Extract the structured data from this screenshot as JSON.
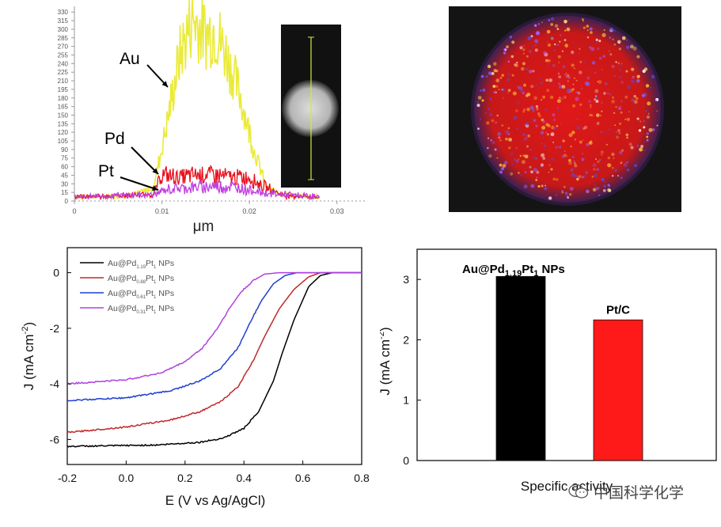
{
  "colors": {
    "au": "#eaea3a",
    "pd": "#e8101c",
    "pt": "#c040e0",
    "black": "#000000",
    "red": "#c0282a",
    "blue": "#1f3fd0",
    "magenta": "#b040e0",
    "bar_red": "#ff1a1a"
  },
  "charts": [
    {
      "chart_data": {
        "type": "line",
        "title": "",
        "xlabel": "μm",
        "ylabel": "",
        "xlim": [
          0,
          0.034
        ],
        "ylim": [
          0,
          340
        ],
        "x_ticks": [
          "0",
          "0.01",
          "0.02",
          "0.03"
        ],
        "y_ticks": [
          "0",
          "15",
          "30",
          "45",
          "60",
          "75",
          "90",
          "105",
          "120",
          "135",
          "150",
          "165",
          "180",
          "195",
          "210",
          "225",
          "240",
          "255",
          "270",
          "285",
          "300",
          "315",
          "330"
        ],
        "grid": false,
        "series": [
          {
            "name": "Au",
            "x": [
              0,
              0.006,
              0.009,
              0.0105,
              0.012,
              0.0135,
              0.015,
              0.016,
              0.0175,
              0.019,
              0.0205,
              0.022,
              0.025,
              0.028
            ],
            "y": [
              6,
              8,
              20,
              130,
              250,
              320,
              290,
              300,
              250,
              180,
              90,
              20,
              8,
              6
            ]
          },
          {
            "name": "Pd",
            "x": [
              0,
              0.009,
              0.01,
              0.012,
              0.014,
              0.016,
              0.018,
              0.02,
              0.021,
              0.024,
              0.028
            ],
            "y": [
              6,
              10,
              45,
              40,
              45,
              45,
              40,
              40,
              30,
              8,
              6
            ]
          },
          {
            "name": "Pt",
            "x": [
              0,
              0.009,
              0.011,
              0.013,
              0.016,
              0.019,
              0.022,
              0.028
            ],
            "y": [
              6,
              10,
              20,
              22,
              25,
              22,
              12,
              6
            ]
          }
        ]
      },
      "labels": {
        "au": "Au",
        "pd": "Pd",
        "pt": "Pt"
      }
    },
    {
      "chart_data": {
        "type": "line",
        "title": "",
        "xlabel": "E (V vs Ag/AgCl)",
        "ylabel": "J (mA cm",
        "ylabel_sup": "-2",
        "ylabel_end": ")",
        "xlim": [
          -0.2,
          0.8
        ],
        "ylim": [
          -6.9,
          0.9
        ],
        "x_ticks": [
          "-0.2",
          "0.0",
          "0.2",
          "0.4",
          "0.6",
          "0.8"
        ],
        "y_ticks": [
          "0",
          "-2",
          "-4",
          "-6"
        ],
        "grid": false,
        "legend": "top-left",
        "series": [
          {
            "name_main": "Au@Pd",
            "name_sub": "1.19",
            "name_pt": "Pt",
            "name_pt_sub": "1",
            "name_end": " NPs",
            "x": [
              -0.2,
              0.1,
              0.25,
              0.33,
              0.4,
              0.45,
              0.5,
              0.53,
              0.57,
              0.62,
              0.66,
              0.7,
              0.8
            ],
            "y": [
              -6.25,
              -6.2,
              -6.1,
              -5.95,
              -5.6,
              -5.0,
              -3.9,
              -2.9,
              -1.7,
              -0.5,
              -0.1,
              0.0,
              0.0
            ]
          },
          {
            "name_main": "Au@Pd",
            "name_sub": "0.88",
            "name_pt": "Pt",
            "name_pt_sub": "1",
            "name_end": " NPs",
            "x": [
              -0.2,
              0.0,
              0.15,
              0.25,
              0.32,
              0.38,
              0.43,
              0.47,
              0.52,
              0.57,
              0.62,
              0.66,
              0.8
            ],
            "y": [
              -5.75,
              -5.55,
              -5.3,
              -5.0,
              -4.65,
              -4.1,
              -3.2,
              -2.3,
              -1.3,
              -0.6,
              -0.15,
              0.0,
              0.0
            ]
          },
          {
            "name_main": "Au@Pd",
            "name_sub": "0.61",
            "name_pt": "Pt",
            "name_pt_sub": "1",
            "name_end": " NPs",
            "x": [
              -0.2,
              0.0,
              0.15,
              0.25,
              0.32,
              0.38,
              0.42,
              0.46,
              0.5,
              0.54,
              0.58,
              0.8
            ],
            "y": [
              -4.6,
              -4.5,
              -4.25,
              -3.9,
              -3.45,
              -2.7,
              -1.8,
              -1.0,
              -0.4,
              -0.1,
              0.0,
              0.0
            ]
          },
          {
            "name_main": "Au@Pd",
            "name_sub": "0.31",
            "name_pt": "Pt",
            "name_pt_sub": "1",
            "name_end": " NPs",
            "x": [
              -0.2,
              0.0,
              0.12,
              0.2,
              0.26,
              0.31,
              0.35,
              0.39,
              0.43,
              0.47,
              0.52,
              0.8
            ],
            "y": [
              -4.0,
              -3.85,
              -3.6,
              -3.2,
              -2.7,
              -2.0,
              -1.3,
              -0.7,
              -0.3,
              -0.05,
              0.0,
              0.0
            ]
          }
        ]
      }
    },
    {
      "chart_data": {
        "type": "bar",
        "title": "",
        "xlabel": "Specific activity",
        "ylabel": "J (mA cm",
        "ylabel_sup": "-2",
        "ylabel_end": ")",
        "ylim": [
          0,
          3.5
        ],
        "y_ticks": [
          "0",
          "1",
          "2",
          "3"
        ],
        "grid": false,
        "categories": [
          "Au@Pd1.19Pt1 NPs",
          "Pt/C"
        ],
        "values": [
          3.05,
          2.33
        ],
        "bar_label_1": {
          "main": "Au@Pd",
          "sub": "1.19",
          "pt": "Pt",
          "pt_sub": "1",
          "end": " NPs"
        },
        "bar_label_2": "Pt/C"
      }
    }
  ],
  "watermark": {
    "text": "中国科学化学"
  }
}
